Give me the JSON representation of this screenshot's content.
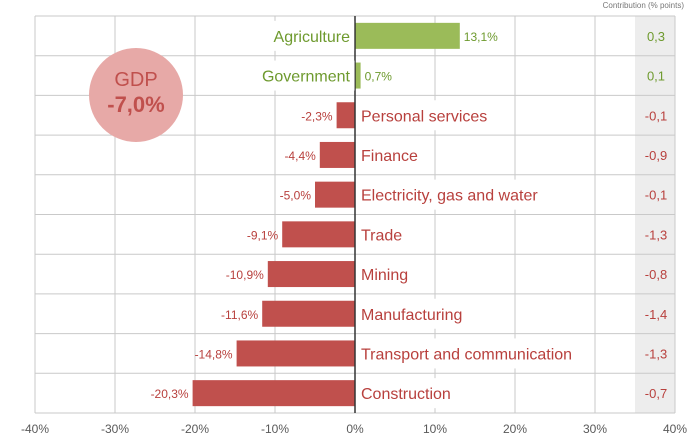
{
  "colors": {
    "positive": "#9bbb59",
    "negative": "#c0504d",
    "positive_text": "#6e9a2e",
    "negative_text": "#b8403d",
    "contribution_panel": "#ededed",
    "gdp_bubble": "#e7a9a7",
    "grid": "#c9c9c9",
    "axis_text": "#595959"
  },
  "gdp": {
    "title": "GDP",
    "value": "-7,0%"
  },
  "contribution_header": "Contribution (% points)",
  "chart_data": {
    "type": "bar",
    "orientation": "horizontal",
    "title": "",
    "xlabel": "",
    "ylabel": "",
    "xlim": [
      -40,
      40
    ],
    "x_ticks": [
      -40,
      -30,
      -20,
      -10,
      0,
      10,
      20,
      30,
      40
    ],
    "x_tick_labels": [
      "-40%",
      "-30%",
      "-20%",
      "-10%",
      "0%",
      "10%",
      "20%",
      "30%",
      "40%"
    ],
    "grid": true,
    "categories": [
      "Agriculture",
      "Government",
      "Personal services",
      "Finance",
      "Electricity, gas and water",
      "Trade",
      "Mining",
      "Manufacturing",
      "Transport and communication",
      "Construction"
    ],
    "values": [
      13.1,
      0.7,
      -2.3,
      -4.4,
      -5.0,
      -9.1,
      -10.9,
      -11.6,
      -14.8,
      -20.3
    ],
    "value_labels": [
      "13,1%",
      "0,7%",
      "-2,3%",
      "-4,4%",
      "-5,0%",
      "-9,1%",
      "-10,9%",
      "-11,6%",
      "-14,8%",
      "-20,3%"
    ],
    "contributions": [
      "0,3",
      "0,1",
      "-0,1",
      "-0,9",
      "-0,1",
      "-1,3",
      "-0,8",
      "-1,4",
      "-1,3",
      "-0,7"
    ]
  }
}
